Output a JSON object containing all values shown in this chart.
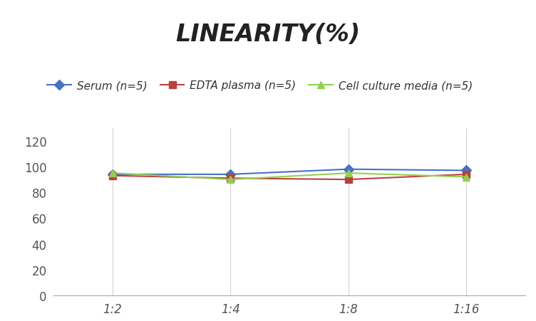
{
  "title": "LINEARITY(%)",
  "x_labels": [
    "1:2",
    "1:4",
    "1:8",
    "1:16"
  ],
  "x_positions": [
    0,
    1,
    2,
    3
  ],
  "series": [
    {
      "label": "Serum (n=5)",
      "values": [
        94,
        94,
        98,
        97
      ],
      "color": "#4472C4",
      "marker": "D",
      "marker_color": "#4472C4"
    },
    {
      "label": "EDTA plasma (n=5)",
      "values": [
        93,
        91,
        90,
        94
      ],
      "color": "#B94040",
      "marker": "s",
      "marker_color": "#B94040"
    },
    {
      "label": "Cell culture media (n=5)",
      "values": [
        95,
        90,
        95,
        92
      ],
      "color": "#92D050",
      "marker": "^",
      "marker_color": "#92D050"
    }
  ],
  "ylim": [
    0,
    130
  ],
  "yticks": [
    0,
    20,
    40,
    60,
    80,
    100,
    120
  ],
  "background_color": "#FFFFFF",
  "grid_color": "#D3D3D3",
  "title_fontsize": 24,
  "legend_fontsize": 11,
  "tick_fontsize": 12
}
